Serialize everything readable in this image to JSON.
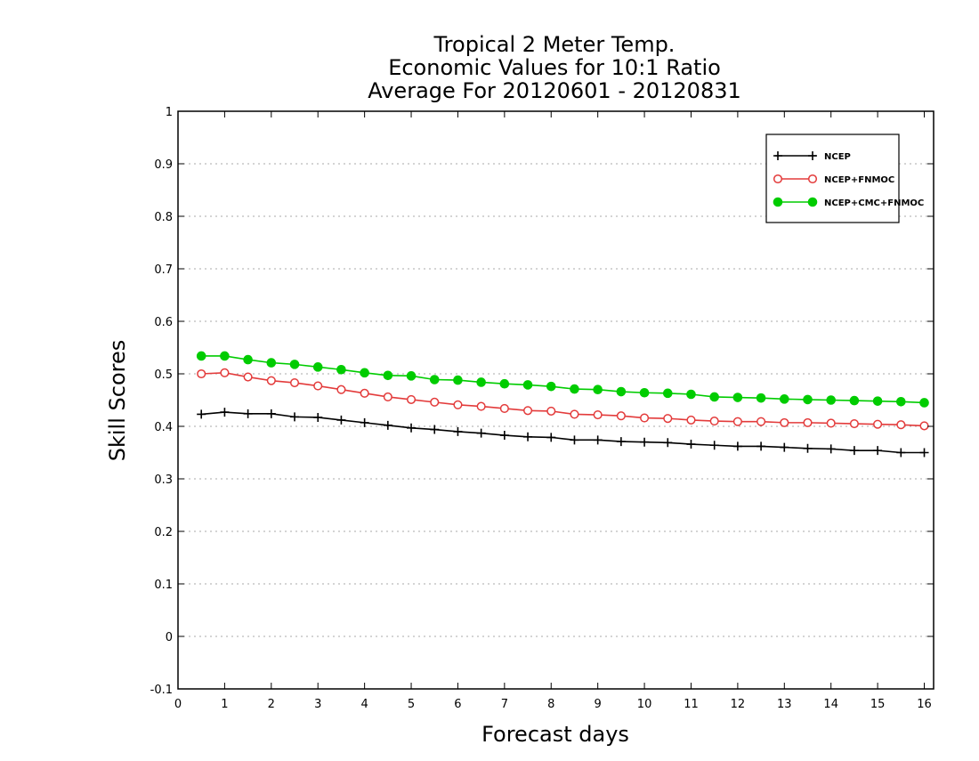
{
  "title_lines": [
    "Tropical 2 Meter Temp.",
    "Economic Values for 10:1 Ratio",
    "Average For 20120601 - 20120831"
  ],
  "chart_data": {
    "type": "line",
    "title": "Tropical 2 Meter Temp. / Economic Values for 10:1 Ratio / Average For 20120601 - 20120831",
    "xlabel": "Forecast days",
    "ylabel": "Skill Scores",
    "xlim": [
      0,
      16.2
    ],
    "ylim": [
      -0.1,
      1
    ],
    "x_ticks": [
      "0",
      "1",
      "2",
      "3",
      "4",
      "5",
      "6",
      "7",
      "8",
      "9",
      "10",
      "11",
      "12",
      "13",
      "14",
      "15",
      "16"
    ],
    "y_ticks": [
      "-0.1",
      "0",
      "0.1",
      "0.2",
      "0.3",
      "0.4",
      "0.5",
      "0.6",
      "0.7",
      "0.8",
      "0.9",
      "1"
    ],
    "grid": "horizontal dotted",
    "legend_position": "top-right",
    "x": [
      0.5,
      1,
      1.5,
      2,
      2.5,
      3,
      3.5,
      4,
      4.5,
      5,
      5.5,
      6,
      6.5,
      7,
      7.5,
      8,
      8.5,
      9,
      9.5,
      10,
      10.5,
      11,
      11.5,
      12,
      12.5,
      13,
      13.5,
      14,
      14.5,
      15,
      15.5,
      16
    ],
    "series": [
      {
        "name": "NCEP",
        "color": "#000000",
        "marker": "plus",
        "values": [
          0.423,
          0.427,
          0.424,
          0.424,
          0.418,
          0.417,
          0.412,
          0.407,
          0.402,
          0.397,
          0.394,
          0.39,
          0.387,
          0.383,
          0.38,
          0.379,
          0.374,
          0.374,
          0.371,
          0.37,
          0.369,
          0.366,
          0.364,
          0.362,
          0.362,
          0.36,
          0.358,
          0.357,
          0.354,
          0.354,
          0.35,
          0.35
        ]
      },
      {
        "name": "NCEP+FNMOC",
        "color": "#e33b3b",
        "marker": "open-circle",
        "values": [
          0.5,
          0.502,
          0.494,
          0.487,
          0.483,
          0.477,
          0.47,
          0.463,
          0.456,
          0.451,
          0.446,
          0.441,
          0.438,
          0.434,
          0.43,
          0.429,
          0.423,
          0.422,
          0.42,
          0.416,
          0.415,
          0.412,
          0.41,
          0.409,
          0.409,
          0.407,
          0.407,
          0.406,
          0.405,
          0.404,
          0.403,
          0.401
        ]
      },
      {
        "name": "NCEP+CMC+FNMOC",
        "color": "#00cc00",
        "marker": "filled-circle",
        "values": [
          0.534,
          0.534,
          0.527,
          0.521,
          0.518,
          0.513,
          0.508,
          0.502,
          0.497,
          0.496,
          0.489,
          0.488,
          0.484,
          0.481,
          0.479,
          0.476,
          0.471,
          0.47,
          0.466,
          0.464,
          0.463,
          0.461,
          0.456,
          0.455,
          0.454,
          0.452,
          0.451,
          0.45,
          0.449,
          0.448,
          0.447,
          0.445
        ]
      }
    ]
  }
}
